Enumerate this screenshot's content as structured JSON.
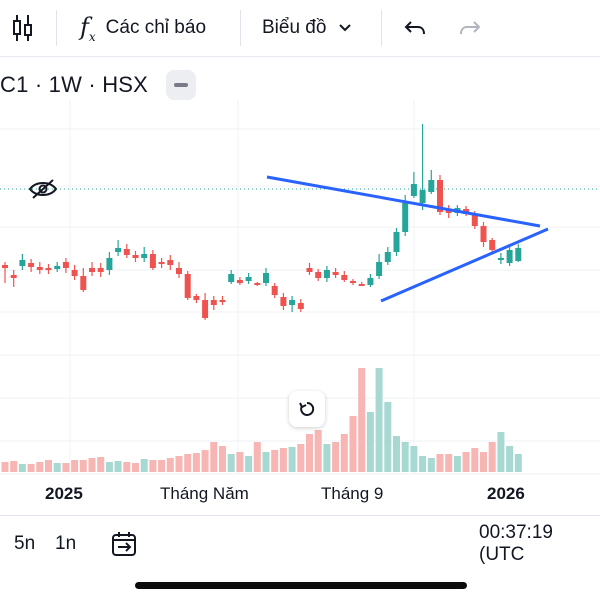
{
  "toolbar": {
    "indicators_label": "Các chỉ báo",
    "chart_label": "Biểu đồ"
  },
  "legend": {
    "symbol": "C1 · 1W · HSX"
  },
  "time_axis": {
    "labels": [
      "2025",
      "Tháng Năm",
      "Tháng 9",
      "2026"
    ]
  },
  "bottom": {
    "range_5d": "5n",
    "range_1d": "1n",
    "clock": "00:37:19 (UTC"
  },
  "colors": {
    "up": "#26a69a",
    "down": "#ef5350",
    "trendline": "#2962ff"
  },
  "chart_data": {
    "type": "candlestick",
    "candles": [
      [
        0,
        265,
        268,
        262,
        283
      ],
      [
        1,
        275,
        278,
        270,
        287
      ],
      [
        2,
        266,
        260,
        254,
        270
      ],
      [
        3,
        263,
        267,
        259,
        272
      ],
      [
        4,
        267,
        270,
        262,
        274
      ],
      [
        5,
        268,
        270,
        264,
        274
      ],
      [
        6,
        269,
        266,
        262,
        272
      ],
      [
        7,
        262,
        268,
        258,
        273
      ],
      [
        8,
        270,
        276,
        265,
        280
      ],
      [
        9,
        276,
        290,
        268,
        292
      ],
      [
        10,
        268,
        272,
        262,
        276
      ],
      [
        11,
        268,
        272,
        263,
        277
      ],
      [
        12,
        270,
        258,
        252,
        275
      ],
      [
        13,
        252,
        248,
        240,
        256
      ],
      [
        14,
        249,
        255,
        244,
        258
      ],
      [
        15,
        255,
        258,
        251,
        262
      ],
      [
        16,
        258,
        254,
        247,
        262
      ],
      [
        17,
        254,
        268,
        250,
        270
      ],
      [
        18,
        262,
        264,
        258,
        268
      ],
      [
        19,
        260,
        265,
        255,
        270
      ],
      [
        20,
        268,
        274,
        262,
        278
      ],
      [
        21,
        274,
        298,
        271,
        300
      ],
      [
        22,
        296,
        300,
        294,
        303
      ],
      [
        23,
        300,
        318,
        293,
        320
      ],
      [
        24,
        300,
        305,
        296,
        310
      ],
      [
        25,
        300,
        300,
        296,
        305
      ],
      [
        26,
        282,
        274,
        270,
        284
      ],
      [
        27,
        280,
        283,
        277,
        285
      ],
      [
        28,
        281,
        277,
        273,
        284
      ],
      [
        29,
        283,
        284,
        282,
        286
      ],
      [
        30,
        283,
        273,
        268,
        286
      ],
      [
        31,
        286,
        295,
        283,
        298
      ],
      [
        32,
        297,
        306,
        293,
        310
      ],
      [
        33,
        305,
        300,
        296,
        312
      ],
      [
        34,
        303,
        309,
        299,
        312
      ],
      [
        35,
        268,
        272,
        263,
        275
      ],
      [
        36,
        272,
        278,
        269,
        281
      ],
      [
        37,
        278,
        270,
        266,
        282
      ],
      [
        38,
        272,
        275,
        268,
        278
      ],
      [
        39,
        275,
        280,
        271,
        282
      ],
      [
        40,
        281,
        283,
        279,
        285
      ],
      [
        41,
        284,
        284,
        282,
        286
      ],
      [
        42,
        285,
        278,
        274,
        287
      ],
      [
        43,
        276,
        262,
        254,
        279
      ],
      [
        44,
        262,
        252,
        247,
        265
      ],
      [
        45,
        252,
        232,
        228,
        256
      ],
      [
        46,
        232,
        203,
        195,
        236
      ],
      [
        47,
        196,
        184,
        172,
        198
      ],
      [
        48,
        203,
        190,
        124,
        210
      ],
      [
        49,
        192,
        180,
        170,
        194
      ],
      [
        50,
        180,
        212,
        175,
        215
      ],
      [
        51,
        210,
        213,
        205,
        218
      ],
      [
        52,
        213,
        208,
        205,
        216
      ],
      [
        53,
        209,
        214,
        206,
        216
      ],
      [
        54,
        215,
        226,
        211,
        229
      ],
      [
        55,
        226,
        242,
        222,
        247
      ],
      [
        56,
        240,
        250,
        238,
        252
      ],
      [
        57,
        260,
        258,
        253,
        264
      ],
      [
        58,
        263,
        250,
        247,
        266
      ],
      [
        59,
        261,
        248,
        244,
        262
      ]
    ],
    "volume_note": "volume histogram at bottom"
  }
}
